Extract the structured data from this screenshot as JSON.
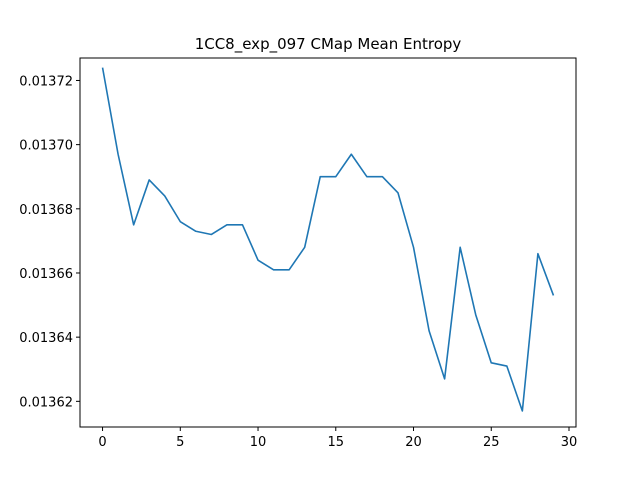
{
  "chart_data": {
    "type": "line",
    "title": "1CC8_exp_097 CMap Mean Entropy",
    "xlabel": "",
    "ylabel": "",
    "xlim": [
      -1.45,
      30.45
    ],
    "ylim": [
      0.013612,
      0.013727
    ],
    "x_ticks": [
      0,
      5,
      10,
      15,
      20,
      25,
      30
    ],
    "x_tick_labels": [
      "0",
      "5",
      "10",
      "15",
      "20",
      "25",
      "30"
    ],
    "y_ticks": [
      0.01362,
      0.01364,
      0.01366,
      0.01368,
      0.0137,
      0.01372
    ],
    "y_tick_labels": [
      "0.01362",
      "0.01364",
      "0.01366",
      "0.01368",
      "0.01370",
      "0.01372"
    ],
    "grid": false,
    "legend": false,
    "line_color": "#1f77b4",
    "series": [
      {
        "x": [
          0,
          1,
          2,
          3,
          4,
          5,
          6,
          7,
          8,
          9,
          10,
          11,
          12,
          13,
          14,
          15,
          16,
          17,
          18,
          19,
          20,
          21,
          22,
          23,
          24,
          25,
          26,
          27,
          28,
          29
        ],
        "values": [
          0.013724,
          0.013697,
          0.013675,
          0.013689,
          0.013684,
          0.013676,
          0.013673,
          0.013672,
          0.013675,
          0.013675,
          0.013664,
          0.013661,
          0.013661,
          0.013668,
          0.01369,
          0.01369,
          0.013697,
          0.01369,
          0.01369,
          0.013685,
          0.013668,
          0.013642,
          0.013627,
          0.013668,
          0.013647,
          0.013632,
          0.013631,
          0.013617,
          0.013666,
          0.013653
        ]
      }
    ]
  }
}
